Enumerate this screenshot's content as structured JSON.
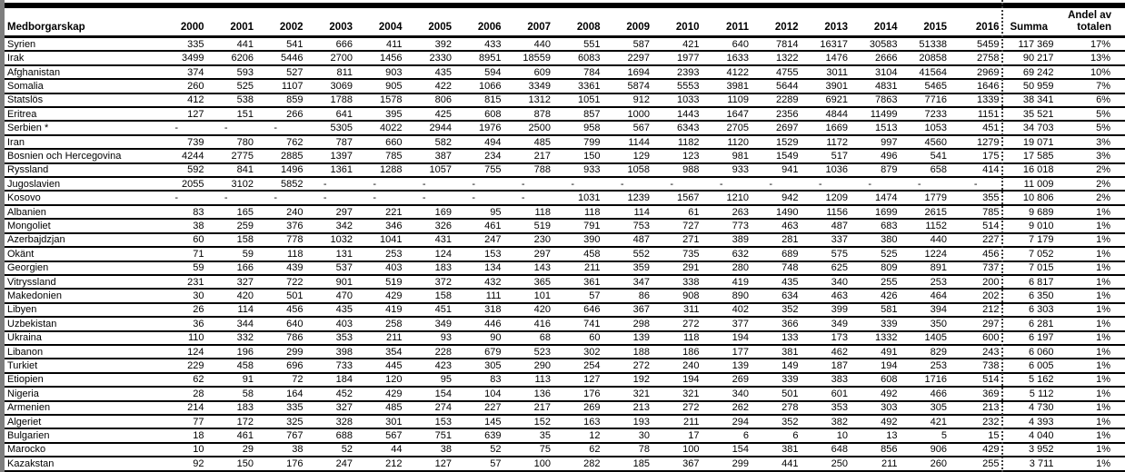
{
  "header": {
    "citizenship_label": "Medborgarskap",
    "years": [
      "2000",
      "2001",
      "2002",
      "2003",
      "2004",
      "2005",
      "2006",
      "2007",
      "2008",
      "2009",
      "2010",
      "2011",
      "2012",
      "2013",
      "2014",
      "2015",
      "2016"
    ],
    "summa_label": "Summa",
    "share_line1": "Andel av",
    "share_line2": "totalen"
  },
  "rows": [
    {
      "name": "Syrien",
      "values": [
        335,
        441,
        541,
        666,
        411,
        392,
        433,
        440,
        551,
        587,
        421,
        640,
        7814,
        16317,
        30583,
        51338,
        5459
      ],
      "summa": "117 369",
      "share": "17%"
    },
    {
      "name": "Irak",
      "values": [
        3499,
        6206,
        5446,
        2700,
        1456,
        2330,
        8951,
        18559,
        6083,
        2297,
        1977,
        1633,
        1322,
        1476,
        2666,
        20858,
        2758
      ],
      "summa": "90 217",
      "share": "13%"
    },
    {
      "name": "Afghanistan",
      "values": [
        374,
        593,
        527,
        811,
        903,
        435,
        594,
        609,
        784,
        1694,
        2393,
        4122,
        4755,
        3011,
        3104,
        41564,
        2969
      ],
      "summa": "69 242",
      "share": "10%"
    },
    {
      "name": "Somalia",
      "values": [
        260,
        525,
        1107,
        3069,
        905,
        422,
        1066,
        3349,
        3361,
        5874,
        5553,
        3981,
        5644,
        3901,
        4831,
        5465,
        1646
      ],
      "summa": "50 959",
      "share": "7%"
    },
    {
      "name": "Statslös",
      "values": [
        412,
        538,
        859,
        1788,
        1578,
        806,
        815,
        1312,
        1051,
        912,
        1033,
        1109,
        2289,
        6921,
        7863,
        7716,
        1339
      ],
      "summa": "38 341",
      "share": "6%"
    },
    {
      "name": "Eritrea",
      "values": [
        127,
        151,
        266,
        641,
        395,
        425,
        608,
        878,
        857,
        1000,
        1443,
        1647,
        2356,
        4844,
        11499,
        7233,
        1151
      ],
      "summa": "35 521",
      "share": "5%"
    },
    {
      "name": "Serbien *",
      "values": [
        "-",
        "-",
        "-",
        5305,
        4022,
        2944,
        1976,
        2500,
        958,
        567,
        6343,
        2705,
        2697,
        1669,
        1513,
        1053,
        451
      ],
      "summa": "34 703",
      "share": "5%"
    },
    {
      "name": "Iran",
      "values": [
        739,
        780,
        762,
        787,
        660,
        582,
        494,
        485,
        799,
        1144,
        1182,
        1120,
        1529,
        1172,
        997,
        4560,
        1279
      ],
      "summa": "19 071",
      "share": "3%"
    },
    {
      "name": "Bosnien och Hercegovina",
      "values": [
        4244,
        2775,
        2885,
        1397,
        785,
        387,
        234,
        217,
        150,
        129,
        123,
        981,
        1549,
        517,
        496,
        541,
        175
      ],
      "summa": "17 585",
      "share": "3%"
    },
    {
      "name": "Ryssland",
      "values": [
        592,
        841,
        1496,
        1361,
        1288,
        1057,
        755,
        788,
        933,
        1058,
        988,
        933,
        941,
        1036,
        879,
        658,
        414
      ],
      "summa": "16 018",
      "share": "2%"
    },
    {
      "name": "Jugoslavien",
      "values": [
        2055,
        3102,
        5852,
        "-",
        "-",
        "-",
        "-",
        "-",
        "-",
        "-",
        "-",
        "-",
        "-",
        "-",
        "-",
        "-",
        "-"
      ],
      "summa": "11 009",
      "share": "2%"
    },
    {
      "name": "Kosovo",
      "values": [
        "-",
        "-",
        "-",
        "-",
        "-",
        "-",
        "-",
        "-",
        1031,
        1239,
        1567,
        1210,
        942,
        1209,
        1474,
        1779,
        355
      ],
      "summa": "10 806",
      "share": "2%"
    },
    {
      "name": "Albanien",
      "values": [
        83,
        165,
        240,
        297,
        221,
        169,
        95,
        118,
        118,
        114,
        61,
        263,
        1490,
        1156,
        1699,
        2615,
        785
      ],
      "summa": "9 689",
      "share": "1%"
    },
    {
      "name": "Mongoliet",
      "values": [
        38,
        259,
        376,
        342,
        346,
        326,
        461,
        519,
        791,
        753,
        727,
        773,
        463,
        487,
        683,
        1152,
        514
      ],
      "summa": "9 010",
      "share": "1%"
    },
    {
      "name": "Azerbajdzjan",
      "values": [
        60,
        158,
        778,
        1032,
        1041,
        431,
        247,
        230,
        390,
        487,
        271,
        389,
        281,
        337,
        380,
        440,
        227
      ],
      "summa": "7 179",
      "share": "1%"
    },
    {
      "name": "Okänt",
      "values": [
        71,
        59,
        118,
        131,
        253,
        124,
        153,
        297,
        458,
        552,
        735,
        632,
        689,
        575,
        525,
        1224,
        456
      ],
      "summa": "7 052",
      "share": "1%"
    },
    {
      "name": "Georgien",
      "values": [
        59,
        166,
        439,
        537,
        403,
        183,
        134,
        143,
        211,
        359,
        291,
        280,
        748,
        625,
        809,
        891,
        737
      ],
      "summa": "7 015",
      "share": "1%"
    },
    {
      "name": "Vitryssland",
      "values": [
        231,
        327,
        722,
        901,
        519,
        372,
        432,
        365,
        361,
        347,
        338,
        419,
        435,
        340,
        255,
        253,
        200
      ],
      "summa": "6 817",
      "share": "1%"
    },
    {
      "name": "Makedonien",
      "values": [
        30,
        420,
        501,
        470,
        429,
        158,
        111,
        101,
        57,
        86,
        908,
        890,
        634,
        463,
        426,
        464,
        202
      ],
      "summa": "6 350",
      "share": "1%"
    },
    {
      "name": "Libyen",
      "values": [
        26,
        114,
        456,
        435,
        419,
        451,
        318,
        420,
        646,
        367,
        311,
        402,
        352,
        399,
        581,
        394,
        212
      ],
      "summa": "6 303",
      "share": "1%"
    },
    {
      "name": "Uzbekistan",
      "values": [
        36,
        344,
        640,
        403,
        258,
        349,
        446,
        416,
        741,
        298,
        272,
        377,
        366,
        349,
        339,
        350,
        297
      ],
      "summa": "6 281",
      "share": "1%"
    },
    {
      "name": "Ukraina",
      "values": [
        110,
        332,
        786,
        353,
        211,
        93,
        90,
        68,
        60,
        139,
        118,
        194,
        133,
        173,
        1332,
        1405,
        600
      ],
      "summa": "6 197",
      "share": "1%"
    },
    {
      "name": "Libanon",
      "values": [
        124,
        196,
        299,
        398,
        354,
        228,
        679,
        523,
        302,
        188,
        186,
        177,
        381,
        462,
        491,
        829,
        243
      ],
      "summa": "6 060",
      "share": "1%"
    },
    {
      "name": "Turkiet",
      "values": [
        229,
        458,
        696,
        733,
        445,
        423,
        305,
        290,
        254,
        272,
        240,
        139,
        149,
        187,
        194,
        253,
        738
      ],
      "summa": "6 005",
      "share": "1%"
    },
    {
      "name": "Etiopien",
      "values": [
        62,
        91,
        72,
        184,
        120,
        95,
        83,
        113,
        127,
        192,
        194,
        269,
        339,
        383,
        608,
        1716,
        514
      ],
      "summa": "5 162",
      "share": "1%"
    },
    {
      "name": "Nigeria",
      "values": [
        28,
        58,
        164,
        452,
        429,
        154,
        104,
        136,
        176,
        321,
        321,
        340,
        501,
        601,
        492,
        466,
        369
      ],
      "summa": "5 112",
      "share": "1%"
    },
    {
      "name": "Armenien",
      "values": [
        214,
        183,
        335,
        327,
        485,
        274,
        227,
        217,
        269,
        213,
        272,
        262,
        278,
        353,
        303,
        305,
        213
      ],
      "summa": "4 730",
      "share": "1%"
    },
    {
      "name": "Algeriet",
      "values": [
        77,
        172,
        325,
        328,
        301,
        153,
        145,
        152,
        163,
        193,
        211,
        294,
        352,
        382,
        492,
        421,
        232
      ],
      "summa": "4 393",
      "share": "1%"
    },
    {
      "name": "Bulgarien",
      "values": [
        18,
        461,
        767,
        688,
        567,
        751,
        639,
        35,
        12,
        30,
        17,
        6,
        6,
        10,
        13,
        5,
        15
      ],
      "summa": "4 040",
      "share": "1%"
    },
    {
      "name": "Marocko",
      "values": [
        10,
        29,
        38,
        52,
        44,
        38,
        52,
        75,
        62,
        78,
        100,
        154,
        381,
        648,
        856,
        906,
        429
      ],
      "summa": "3 952",
      "share": "1%"
    },
    {
      "name": "Kazakstan",
      "values": [
        92,
        150,
        176,
        247,
        212,
        127,
        57,
        100,
        282,
        185,
        367,
        299,
        441,
        250,
        211,
        260,
        255
      ],
      "summa": "3 711",
      "share": "1%"
    }
  ]
}
